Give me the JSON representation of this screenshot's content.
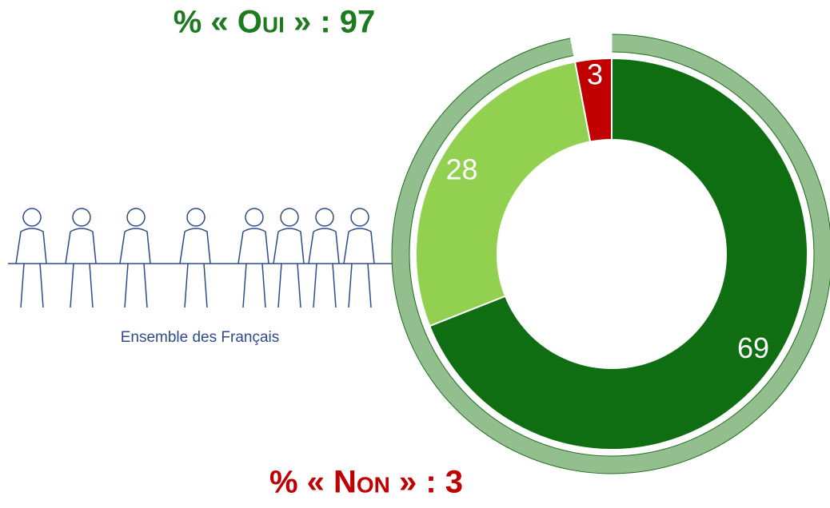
{
  "chart_data": {
    "type": "donut",
    "title": "% « Oui » : 97",
    "footer": "% « Non » : 3",
    "caption": "Ensemble des Français",
    "values": [
      69,
      28,
      3
    ],
    "colors": [
      "#106e12",
      "#92d050",
      "#c00000"
    ],
    "outer": {
      "values": [
        97,
        3
      ],
      "colors": [
        "#93bf8f",
        "#ffffff"
      ]
    }
  }
}
